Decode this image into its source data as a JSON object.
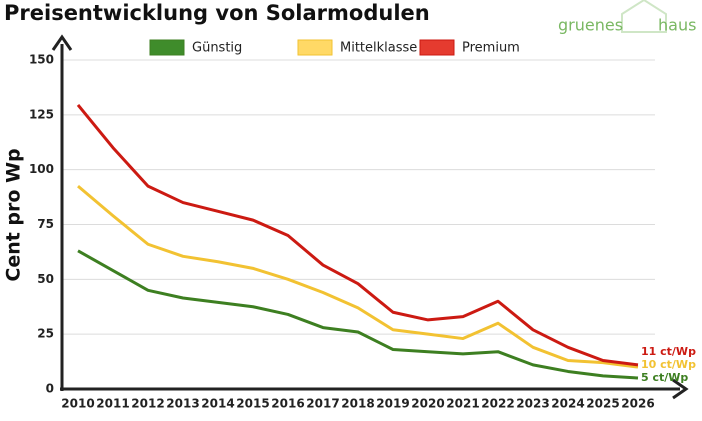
{
  "chart_data": {
    "type": "line",
    "title": "Preisentwicklung von Solarmodulen",
    "y_label": "Cent pro Wp",
    "x": [
      2010,
      2011,
      2012,
      2013,
      2014,
      2015,
      2016,
      2017,
      2018,
      2019,
      2020,
      2021,
      2022,
      2023,
      2024,
      2025,
      2026
    ],
    "series": [
      {
        "name": "Günstig",
        "color": "#3d7f21",
        "legend_color": "#3f8c2b",
        "end_label": "5 ct/Wp",
        "values": [
          63,
          54,
          45,
          41.5,
          39.5,
          37.5,
          34,
          28,
          26,
          18,
          17,
          16,
          17,
          11,
          8,
          6,
          5
        ]
      },
      {
        "name": "Mittelklasse",
        "color": "#f2c232",
        "legend_color": "#ffd966",
        "end_label": "10 ct/Wp",
        "values": [
          92.5,
          79,
          66,
          60.5,
          58,
          55,
          50,
          44,
          37,
          27,
          25,
          23,
          30,
          19,
          13,
          12,
          10
        ]
      },
      {
        "name": "Premium",
        "color": "#cc1a12",
        "legend_color": "#e53b2f",
        "end_label": "11 ct/Wp",
        "values": [
          129.5,
          110,
          92.5,
          85,
          81,
          77,
          70,
          56.5,
          48,
          35,
          31.5,
          33,
          40,
          27,
          19,
          13,
          11
        ]
      }
    ],
    "ylim": [
      0,
      150
    ],
    "yticks": [
      0,
      25,
      50,
      75,
      100,
      125,
      150
    ],
    "grid": true
  },
  "logo": {
    "left": "gruenes",
    "right": "haus"
  }
}
